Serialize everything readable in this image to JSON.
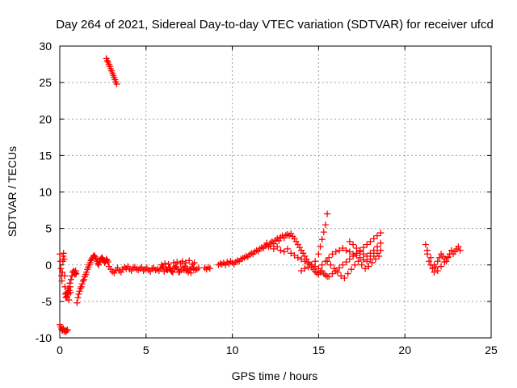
{
  "chart_data": {
    "type": "scatter",
    "title": "Day 264 of 2021, Sidereal Day-to-day VTEC variation (SDTVAR) for receiver ufcd",
    "xlabel": "GPS time / hours",
    "ylabel": "SDTVAR / TECUs",
    "xlim": [
      0,
      25
    ],
    "ylim": [
      -10,
      30
    ],
    "xticks": [
      0,
      5,
      10,
      15,
      20,
      25
    ],
    "yticks": [
      -10,
      -5,
      0,
      5,
      10,
      15,
      20,
      25,
      30
    ],
    "grid": true,
    "marker": "+",
    "color": "#ff0000",
    "segments": [
      {
        "x": [
          0.0,
          0.05,
          0.1,
          0.15,
          0.2,
          0.25,
          0.3,
          0.35,
          0.4,
          0.45
        ],
        "y": [
          -8.2,
          -8.5,
          -8.8,
          -9.0,
          -8.7,
          -9.1,
          -8.9,
          -9.2,
          -9.0,
          -8.9
        ]
      },
      {
        "x": [
          0.0,
          0.03,
          0.06,
          0.1,
          0.12,
          0.15,
          0.18,
          0.2,
          0.22,
          0.25,
          0.28,
          0.3,
          0.32,
          0.35,
          0.38,
          0.4
        ],
        "y": [
          1.5,
          0.5,
          -0.5,
          -1.5,
          -2.2,
          -1.0,
          0.5,
          1.2,
          1.6,
          0.8,
          -1.5,
          -3.0,
          -4.0,
          -4.5,
          -3.8,
          -4.3
        ]
      },
      {
        "x": [
          0.42,
          0.45,
          0.48,
          0.5,
          0.52,
          0.55,
          0.58,
          0.6,
          0.62,
          0.65,
          0.7,
          0.75,
          0.8
        ],
        "y": [
          -4.5,
          -3.8,
          -3.2,
          -4.0,
          -4.8,
          -3.5,
          -2.5,
          -3.0,
          -3.8,
          -2.0,
          -1.5,
          -1.0,
          -0.8
        ]
      },
      {
        "x": [
          1.0,
          1.05,
          1.1,
          1.15,
          1.2,
          1.25,
          1.3,
          1.35,
          1.4,
          1.45,
          1.5,
          1.55,
          1.6,
          1.65,
          1.7,
          1.75,
          1.8,
          1.85,
          1.9,
          1.95,
          2.0,
          2.05,
          2.1,
          2.15,
          2.2,
          2.25,
          2.3,
          2.35,
          2.4,
          2.45,
          2.5,
          2.55,
          2.6,
          2.65,
          2.7,
          2.75,
          2.8
        ],
        "y": [
          -5.2,
          -4.5,
          -4.0,
          -3.6,
          -3.2,
          -3.0,
          -2.6,
          -2.2,
          -2.0,
          -1.6,
          -1.3,
          -1.0,
          -0.6,
          -0.3,
          0.0,
          0.3,
          0.6,
          0.8,
          1.0,
          1.2,
          1.3,
          1.1,
          0.9,
          0.5,
          0.2,
          0.0,
          0.4,
          0.7,
          0.9,
          1.0,
          0.8,
          0.6,
          0.3,
          0.5,
          0.8,
          0.6,
          0.4
        ]
      },
      {
        "x": [
          0.85,
          0.88,
          0.9,
          0.92,
          0.95
        ],
        "y": [
          -1.0,
          -1.3,
          -1.1,
          -0.8,
          -1.2
        ]
      },
      {
        "x": [
          2.7,
          2.75,
          2.8,
          2.85,
          2.9,
          2.95,
          3.0,
          3.05,
          3.1,
          3.15,
          3.2,
          3.25,
          3.3
        ],
        "y": [
          28.3,
          28.0,
          27.8,
          27.5,
          27.2,
          26.9,
          26.6,
          26.3,
          26.0,
          25.7,
          25.4,
          25.1,
          24.8
        ]
      },
      {
        "x": [
          2.85,
          2.95,
          3.05,
          3.15,
          3.25,
          3.35,
          3.45,
          3.55,
          3.65,
          3.75,
          3.85,
          3.95,
          4.05,
          4.15,
          4.25,
          4.35,
          4.45,
          4.55,
          4.65,
          4.75,
          4.85,
          4.95,
          5.05,
          5.15,
          5.25,
          5.35,
          5.45,
          5.55,
          5.65,
          5.75,
          5.85,
          5.95,
          6.05,
          6.15,
          6.25,
          6.35,
          6.45,
          6.55,
          6.65,
          6.75,
          6.85,
          6.95,
          7.05,
          7.15,
          7.25,
          7.35,
          7.45,
          7.55,
          7.65,
          7.75,
          7.85,
          7.95,
          8.05
        ],
        "y": [
          -0.2,
          -0.6,
          -0.9,
          -1.1,
          -0.7,
          -0.4,
          -0.8,
          -1.0,
          -0.6,
          -0.3,
          -0.5,
          -0.2,
          -0.6,
          -0.8,
          -0.4,
          -0.3,
          -0.6,
          -0.7,
          -0.5,
          -0.3,
          -0.8,
          -0.6,
          -0.4,
          -0.7,
          -0.9,
          -0.5,
          -0.4,
          -0.7,
          -0.6,
          -0.8,
          -0.5,
          -0.3,
          -0.9,
          -0.6,
          -0.7,
          -0.4,
          -0.8,
          -1.0,
          -0.5,
          -0.3,
          -0.6,
          -0.9,
          -0.7,
          -0.4,
          -0.2,
          -0.8,
          -1.0,
          -0.6,
          -0.3,
          -0.5,
          -0.7,
          -0.6,
          -0.4
        ]
      },
      {
        "x": [
          5.9,
          6.0,
          6.1,
          6.2,
          6.3,
          6.4,
          6.5,
          6.6,
          6.7,
          6.8,
          6.9,
          7.0,
          7.1,
          7.2,
          7.3,
          7.4,
          7.5,
          7.6,
          7.7,
          7.8
        ],
        "y": [
          0.0,
          -0.3,
          0.2,
          -0.6,
          0.1,
          -0.4,
          -0.9,
          0.3,
          -0.2,
          0.4,
          -1.0,
          0.2,
          0.5,
          -0.7,
          0.3,
          -0.5,
          0.6,
          -1.1,
          0.1,
          0.3
        ]
      },
      {
        "x": [
          8.4,
          8.5,
          8.6,
          8.7
        ],
        "y": [
          -0.4,
          -0.6,
          -0.3,
          -0.5
        ]
      },
      {
        "x": [
          9.2,
          9.3,
          9.4,
          9.5,
          9.6,
          9.7,
          9.8,
          9.9,
          10.0,
          10.1,
          10.2,
          10.3,
          10.4,
          10.5,
          10.6,
          10.7,
          10.8,
          10.9,
          11.0,
          11.1,
          11.2,
          11.3,
          11.4,
          11.5,
          11.6,
          11.7,
          11.8,
          11.9,
          12.0,
          12.1,
          12.2,
          12.3,
          12.4,
          12.5,
          12.6,
          12.7,
          12.8,
          12.9,
          13.0,
          13.1,
          13.2,
          13.3,
          13.4,
          13.5,
          13.6,
          13.7,
          13.8,
          13.9,
          14.0,
          14.1,
          14.2,
          14.3,
          14.4,
          14.5,
          14.6,
          14.7,
          14.8,
          14.9,
          15.0,
          15.1,
          15.2,
          15.3,
          15.4,
          15.5
        ],
        "y": [
          0.0,
          0.2,
          0.1,
          0.3,
          0.0,
          0.4,
          0.2,
          0.5,
          0.3,
          0.1,
          0.4,
          0.6,
          0.5,
          0.8,
          0.9,
          1.0,
          1.2,
          1.1,
          1.4,
          1.6,
          1.5,
          1.8,
          2.0,
          1.9,
          2.2,
          2.4,
          2.3,
          2.6,
          2.8,
          2.5,
          3.0,
          3.2,
          2.9,
          3.4,
          3.6,
          3.3,
          3.8,
          4.0,
          3.7,
          4.1,
          4.2,
          4.0,
          4.3,
          3.9,
          3.6,
          3.2,
          2.8,
          2.4,
          2.0,
          1.6,
          1.2,
          0.8,
          0.4,
          0.0,
          -0.3,
          -0.6,
          -0.9,
          -1.1,
          -1.3,
          -1.0,
          -0.8,
          -1.2,
          -1.4,
          -1.6
        ]
      },
      {
        "x": [
          12.0,
          12.2,
          12.4,
          12.6,
          12.8,
          13.0,
          13.2,
          13.4,
          13.6,
          13.8,
          14.0,
          14.2,
          14.4,
          14.6,
          14.8,
          15.0,
          15.2,
          15.4,
          15.6,
          15.8,
          16.0,
          16.2,
          16.4,
          16.6,
          16.8,
          17.0,
          17.2,
          17.4,
          17.6,
          17.8,
          18.0,
          18.2,
          18.4,
          18.6
        ],
        "y": [
          3.0,
          2.6,
          2.2,
          2.5,
          2.0,
          1.8,
          2.2,
          1.6,
          1.3,
          1.0,
          0.8,
          0.5,
          0.2,
          0.0,
          -0.2,
          -0.5,
          0.0,
          0.5,
          1.0,
          1.5,
          1.8,
          2.0,
          2.3,
          2.0,
          1.8,
          1.5,
          1.3,
          1.0,
          0.7,
          0.5,
          0.8,
          1.2,
          1.6,
          2.0
        ]
      },
      {
        "x": [
          14.0,
          14.2,
          14.4,
          14.6,
          14.8,
          15.0,
          15.1,
          15.2,
          15.3,
          15.4,
          15.5
        ],
        "y": [
          -0.8,
          -0.5,
          -0.3,
          0.0,
          0.5,
          1.5,
          2.5,
          3.5,
          4.5,
          5.5,
          7.0
        ]
      },
      {
        "x": [
          15.6,
          15.8,
          16.0,
          16.2,
          16.4,
          16.6,
          16.8,
          17.0,
          17.2,
          17.4,
          17.6,
          17.8,
          18.0,
          18.2,
          18.4,
          18.6
        ],
        "y": [
          -1.6,
          -1.2,
          -0.8,
          -0.4,
          0.0,
          0.4,
          0.8,
          1.2,
          1.6,
          2.0,
          2.4,
          2.8,
          3.2,
          3.6,
          4.0,
          4.4
        ]
      },
      {
        "x": [
          15.5,
          15.7,
          15.9,
          16.1,
          16.3,
          16.5,
          16.7,
          16.9,
          17.1,
          17.3,
          17.5,
          17.7,
          17.9,
          18.1,
          18.3,
          18.5
        ],
        "y": [
          0.5,
          0.0,
          -0.5,
          -1.0,
          -1.5,
          -1.8,
          -1.2,
          -0.6,
          0.0,
          0.5,
          0.0,
          -0.5,
          -0.2,
          0.3,
          0.8,
          1.2
        ]
      },
      {
        "x": [
          16.8,
          17.0,
          17.2,
          17.4,
          17.6,
          17.8,
          18.0,
          18.2,
          18.4,
          18.6
        ],
        "y": [
          3.2,
          2.8,
          2.3,
          1.8,
          1.5,
          1.2,
          1.6,
          2.0,
          2.5,
          3.0
        ]
      },
      {
        "x": [
          21.2,
          21.3,
          21.4,
          21.5,
          21.6,
          21.7,
          21.8,
          21.9,
          22.0,
          22.1,
          22.2,
          22.3,
          22.4,
          22.5,
          22.6,
          22.7,
          22.8,
          22.9,
          23.0,
          23.1,
          23.2
        ],
        "y": [
          2.8,
          1.5,
          0.5,
          0.0,
          -0.5,
          -1.0,
          -0.3,
          0.5,
          1.0,
          1.5,
          1.2,
          0.8,
          0.5,
          1.0,
          1.5,
          2.0,
          1.5,
          1.8,
          2.2,
          2.5,
          2.0
        ]
      },
      {
        "x": [
          21.3,
          21.5,
          21.7,
          21.9,
          22.1,
          22.3,
          22.5
        ],
        "y": [
          2.0,
          1.0,
          0.0,
          -0.8,
          -0.2,
          0.4,
          1.1
        ]
      }
    ]
  }
}
